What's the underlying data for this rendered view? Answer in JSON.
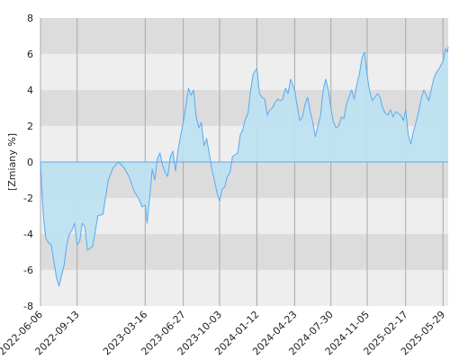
{
  "chart_data": {
    "type": "area",
    "ylabel": "[Zmiany %]",
    "ylim": [
      -8,
      8
    ],
    "yticks": [
      8,
      6,
      4,
      2,
      0,
      -2,
      -4,
      -6,
      -8
    ],
    "xlim": [
      "2022-06-06",
      "2025-06-12"
    ],
    "xticks": [
      "2022-06-06",
      "2022-09-13",
      "2023-03-16",
      "2023-06-27",
      "2023-10-03",
      "2024-01-12",
      "2024-04-23",
      "2024-07-30",
      "2024-11-05",
      "2025-02-17",
      "2025-05-29"
    ],
    "grid": true,
    "colors": {
      "line": "#5aaaf0",
      "fill_positive": "#bde0f0",
      "fill_negative": "#a8d8ea",
      "band_dark": "#dcdcdc",
      "band_light": "#eeeeee",
      "grid": "#a8a8a8"
    },
    "series": [
      {
        "x": [
          "2022-06-06",
          "2022-06-09",
          "2022-06-14",
          "2022-06-20",
          "2022-06-28",
          "2022-07-05",
          "2022-07-12",
          "2022-07-19",
          "2022-07-26",
          "2022-08-02",
          "2022-08-09",
          "2022-08-16",
          "2022-08-23",
          "2022-08-30",
          "2022-09-06",
          "2022-09-13",
          "2022-09-20",
          "2022-09-27",
          "2022-10-04",
          "2022-10-11",
          "2022-10-25",
          "2022-11-08",
          "2022-11-22",
          "2022-12-06",
          "2022-12-20",
          "2023-01-03",
          "2023-01-17",
          "2023-01-31",
          "2023-02-14",
          "2023-02-28",
          "2023-03-08",
          "2023-03-16",
          "2023-03-21",
          "2023-03-28",
          "2023-04-04",
          "2023-04-11",
          "2023-04-18",
          "2023-04-25",
          "2023-05-02",
          "2023-05-09",
          "2023-05-16",
          "2023-05-23",
          "2023-05-30",
          "2023-06-06",
          "2023-06-13",
          "2023-06-20",
          "2023-06-27",
          "2023-07-04",
          "2023-07-11",
          "2023-07-18",
          "2023-07-25",
          "2023-08-01",
          "2023-08-08",
          "2023-08-15",
          "2023-08-22",
          "2023-08-29",
          "2023-09-05",
          "2023-09-12",
          "2023-09-19",
          "2023-09-26",
          "2023-10-03",
          "2023-10-10",
          "2023-10-17",
          "2023-10-24",
          "2023-10-31",
          "2023-11-07",
          "2023-11-14",
          "2023-11-21",
          "2023-11-28",
          "2023-12-05",
          "2023-12-12",
          "2023-12-19",
          "2023-12-26",
          "2024-01-02",
          "2024-01-12",
          "2024-01-19",
          "2024-01-26",
          "2024-02-02",
          "2024-02-09",
          "2024-02-16",
          "2024-02-23",
          "2024-03-01",
          "2024-03-08",
          "2024-03-15",
          "2024-03-22",
          "2024-03-29",
          "2024-04-05",
          "2024-04-12",
          "2024-04-23",
          "2024-04-30",
          "2024-05-07",
          "2024-05-14",
          "2024-05-21",
          "2024-05-28",
          "2024-06-04",
          "2024-06-11",
          "2024-06-18",
          "2024-06-25",
          "2024-07-02",
          "2024-07-09",
          "2024-07-16",
          "2024-07-23",
          "2024-07-30",
          "2024-08-06",
          "2024-08-13",
          "2024-08-20",
          "2024-08-27",
          "2024-09-03",
          "2024-09-10",
          "2024-09-17",
          "2024-09-24",
          "2024-10-01",
          "2024-10-08",
          "2024-10-15",
          "2024-10-22",
          "2024-10-29",
          "2024-11-05",
          "2024-11-12",
          "2024-11-19",
          "2024-11-26",
          "2024-12-03",
          "2024-12-10",
          "2024-12-17",
          "2024-12-24",
          "2024-12-31",
          "2025-01-07",
          "2025-01-14",
          "2025-01-21",
          "2025-01-28",
          "2025-02-04",
          "2025-02-11",
          "2025-02-17",
          "2025-02-24",
          "2025-03-03",
          "2025-03-10",
          "2025-03-17",
          "2025-03-24",
          "2025-03-31",
          "2025-04-07",
          "2025-04-14",
          "2025-04-21",
          "2025-04-28",
          "2025-05-05",
          "2025-05-12",
          "2025-05-19",
          "2025-05-29",
          "2025-06-05",
          "2025-06-10",
          "2025-06-12"
        ],
        "values": [
          0.0,
          -1.3,
          -3.0,
          -4.2,
          -4.5,
          -4.6,
          -5.5,
          -6.4,
          -6.9,
          -6.3,
          -5.7,
          -4.6,
          -4.0,
          -3.8,
          -3.4,
          -4.6,
          -4.4,
          -3.4,
          -3.6,
          -4.9,
          -4.7,
          -3.0,
          -2.9,
          -1.0,
          -0.3,
          0.0,
          -0.3,
          -0.8,
          -1.6,
          -2.1,
          -2.5,
          -2.4,
          -3.4,
          -2.0,
          -0.4,
          -1.0,
          0.2,
          0.5,
          -0.2,
          -0.6,
          -0.8,
          0.3,
          0.6,
          -0.5,
          0.7,
          1.5,
          2.2,
          3.1,
          4.1,
          3.7,
          4.0,
          2.5,
          1.9,
          2.2,
          0.9,
          1.3,
          0.5,
          -0.4,
          -1.0,
          -1.7,
          -2.2,
          -1.5,
          -1.4,
          -0.8,
          -0.6,
          0.3,
          0.4,
          0.5,
          1.5,
          1.8,
          2.4,
          2.7,
          4.0,
          4.9,
          5.2,
          3.8,
          3.6,
          3.5,
          2.6,
          2.9,
          3.0,
          3.3,
          3.5,
          3.4,
          3.5,
          4.1,
          3.8,
          4.6,
          4.0,
          3.1,
          2.3,
          2.5,
          3.2,
          3.6,
          2.8,
          2.2,
          1.4,
          2.0,
          2.6,
          4.0,
          4.6,
          4.0,
          3.0,
          2.2,
          1.9,
          2.0,
          2.5,
          2.4,
          3.2,
          3.6,
          4.0,
          3.5,
          4.3,
          4.9,
          5.8,
          6.1,
          4.8,
          3.9,
          3.4,
          3.6,
          3.8,
          3.6,
          3.0,
          2.7,
          2.6,
          2.9,
          2.5,
          2.8,
          2.7,
          2.6,
          2.3,
          2.9,
          1.5,
          1.0,
          1.7,
          2.2,
          2.8,
          3.5,
          4.0,
          3.7,
          3.4,
          4.1,
          4.7,
          5.0,
          5.2,
          5.6,
          6.3,
          6.1,
          6.4
        ]
      }
    ]
  }
}
